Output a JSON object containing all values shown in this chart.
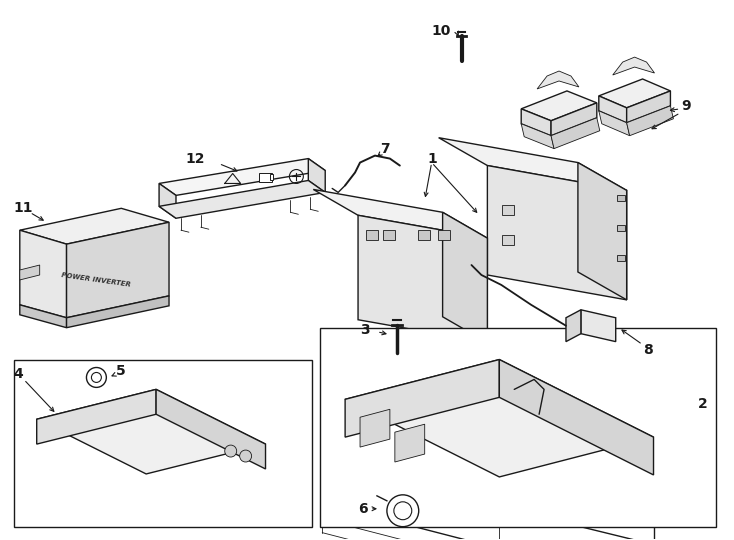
{
  "bg_color": "#ffffff",
  "lc": "#1a1a1a",
  "lw": 1.0,
  "lw_thin": 0.6,
  "fig_width": 7.34,
  "fig_height": 5.4,
  "dpi": 100,
  "label_fontsize": 10,
  "arrow_fontsize": 9
}
